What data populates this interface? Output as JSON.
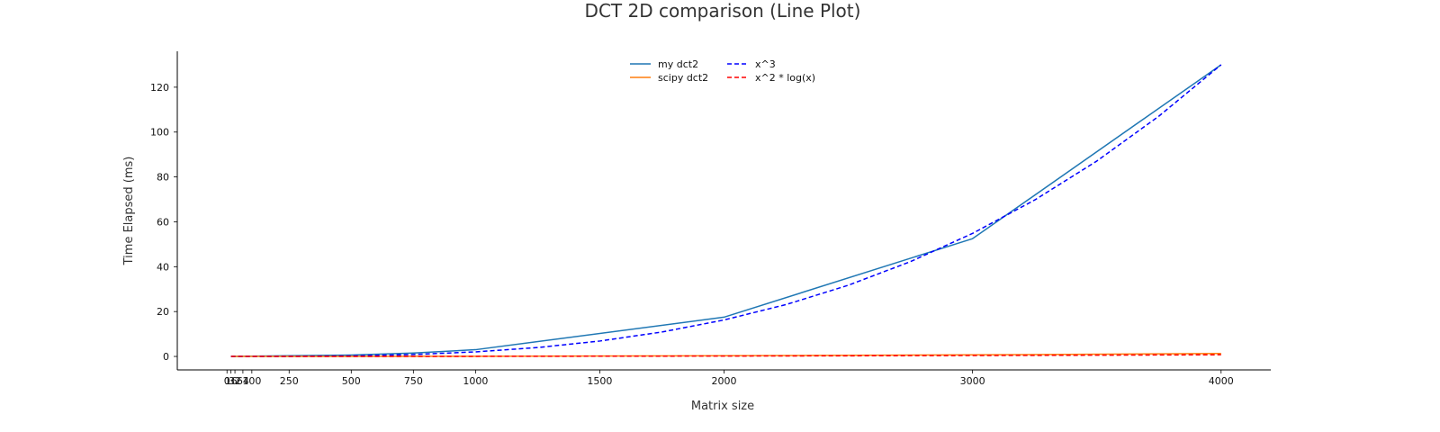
{
  "chart_data": {
    "type": "line",
    "title": "DCT 2D comparison (Line Plot)",
    "xlabel": "Matrix size",
    "ylabel": "Time Elapsed (ms)",
    "xlim": [
      -200,
      4200
    ],
    "ylim": [
      -6,
      136
    ],
    "x_ticks": [
      0,
      16,
      32,
      64,
      100,
      250,
      500,
      750,
      1000,
      1500,
      2000,
      3000,
      4000
    ],
    "x_tick_labels": [
      "0",
      "16",
      "32",
      "64",
      "100",
      "250",
      "500",
      "750",
      "1000",
      "1500",
      "2000",
      "3000",
      "4000"
    ],
    "y_ticks": [
      0,
      20,
      40,
      60,
      80,
      100,
      120
    ],
    "y_tick_labels": [
      "0",
      "20",
      "40",
      "60",
      "80",
      "100",
      "120"
    ],
    "grid": false,
    "legend_position": "top-center",
    "series": [
      {
        "name": "my dct2",
        "color": "#1f77b4",
        "dash": "solid",
        "x": [
          16,
          32,
          64,
          100,
          250,
          500,
          750,
          1000,
          2000,
          3000,
          4000
        ],
        "y": [
          0.01,
          0.02,
          0.05,
          0.1,
          0.3,
          0.6,
          1.5,
          3.0,
          17.5,
          52.5,
          130.0
        ]
      },
      {
        "name": "scipy dct2",
        "color": "#ff7f0e",
        "dash": "solid",
        "x": [
          16,
          32,
          64,
          100,
          250,
          500,
          750,
          1000,
          2000,
          3000,
          4000
        ],
        "y": [
          0.0,
          0.0,
          0.0,
          0.0,
          0.01,
          0.02,
          0.05,
          0.08,
          0.3,
          0.7,
          1.3
        ]
      },
      {
        "name": "x^3",
        "color": "#0000ff",
        "dash": "dashed",
        "x": [
          16,
          100,
          250,
          500,
          750,
          1000,
          1250,
          1500,
          1750,
          2000,
          2250,
          2500,
          2750,
          3000,
          3250,
          3500,
          3750,
          4000
        ],
        "y": [
          0.0,
          0.002,
          0.03,
          0.25,
          0.86,
          2.03,
          3.97,
          6.86,
          10.89,
          16.25,
          23.14,
          31.74,
          42.25,
          54.84,
          69.73,
          87.09,
          107.12,
          130.0
        ]
      },
      {
        "name": "x^2 * log(x)",
        "color": "#ff0000",
        "dash": "dashed",
        "x": [
          16,
          100,
          250,
          500,
          750,
          1000,
          1500,
          2000,
          2500,
          3000,
          3500,
          4000
        ],
        "y": [
          0.0,
          0.0,
          0.002,
          0.01,
          0.02,
          0.04,
          0.1,
          0.17,
          0.28,
          0.41,
          0.56,
          0.75
        ]
      }
    ]
  }
}
